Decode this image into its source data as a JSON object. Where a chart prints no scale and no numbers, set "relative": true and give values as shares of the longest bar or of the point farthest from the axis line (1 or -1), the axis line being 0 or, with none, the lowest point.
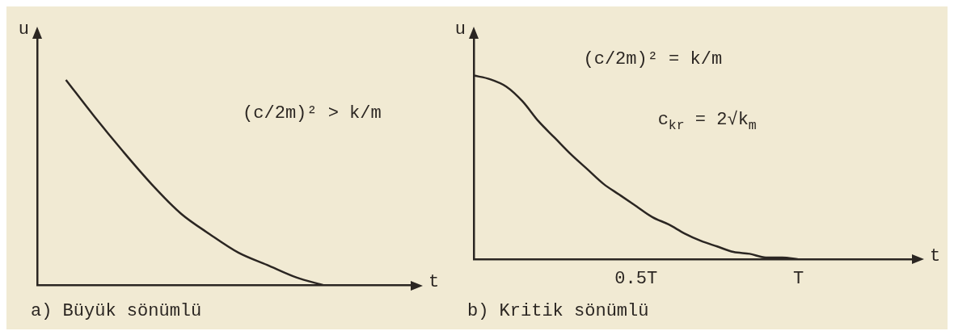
{
  "chart_data": [
    {
      "type": "line",
      "title": "a) Büyük sönümlü",
      "xlabel": "t",
      "ylabel": "u",
      "relative": true,
      "tick_labels": false,
      "grid": false,
      "marker": "none",
      "color": "#2b2622",
      "categories": [
        null,
        null,
        null,
        null,
        null,
        null,
        null,
        null,
        null,
        null,
        null,
        null,
        null,
        null
      ],
      "values": [
        null,
        1,
        0.82,
        0.65,
        0.49,
        0.35,
        0.25,
        0.16,
        0.1,
        0.04,
        0,
        null,
        null,
        null
      ],
      "annotations": [
        "(c/2m)² > k/m"
      ]
    },
    {
      "type": "line",
      "title": "b) Kritik sönümlü",
      "xlabel": "t",
      "ylabel": "u",
      "relative": true,
      "tick_labels": "x",
      "grid": false,
      "marker": "none",
      "color": "#2b2622",
      "categories": [
        null,
        null,
        null,
        null,
        null,
        null,
        null,
        null,
        null,
        null,
        "0.5T",
        null,
        null,
        null,
        null,
        null,
        null,
        null,
        null,
        null,
        "T",
        null,
        null,
        null,
        null,
        null,
        null,
        null
      ],
      "values": [
        1,
        0.98,
        0.94,
        0.86,
        0.75,
        0.66,
        0.57,
        0.49,
        0.41,
        0.35,
        0.29,
        0.23,
        0.19,
        0.14,
        0.1,
        0.07,
        0.04,
        0.03,
        0.01,
        0.01,
        0,
        null,
        null,
        null,
        null,
        null,
        null,
        null
      ],
      "annotations": [
        "(c/2m)² = k/m",
        "c$_{kr}$ = 2√k$_{m}$"
      ]
    }
  ]
}
